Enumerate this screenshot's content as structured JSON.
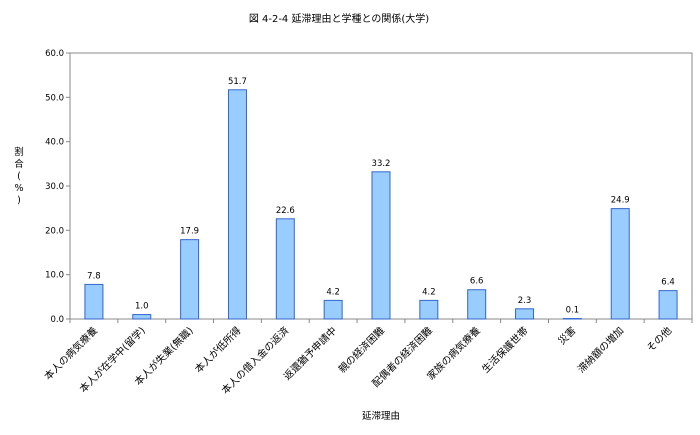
{
  "chart_data": {
    "type": "bar",
    "title": "図 4-2-4 延滞理由と学種との関係(大学)",
    "xlabel": "延滞理由",
    "ylabel": "割合(%)",
    "ylim": [
      0,
      60
    ],
    "yticks": [
      "0.0",
      "10.0",
      "20.0",
      "30.0",
      "40.0",
      "50.0",
      "60.0"
    ],
    "grid": false,
    "legend": "none",
    "bar_color": "#99ccff",
    "bar_edge_color": "#3366cc",
    "categories": [
      "本人の病気療養",
      "本人が在学中(留学)",
      "本人が失業(無職)",
      "本人が低所得",
      "本人の借入金の返済",
      "返還猶予申請中",
      "親の経済困難",
      "配偶者の経済困難",
      "家族の病気療養",
      "生活保護世帯",
      "災害",
      "滞納額の増加",
      "その他"
    ],
    "values": [
      7.8,
      1.0,
      17.9,
      51.7,
      22.6,
      4.2,
      33.2,
      4.2,
      6.6,
      2.3,
      0.1,
      24.9,
      6.4
    ],
    "data_labels": [
      "7.8",
      "1.0",
      "17.9",
      "51.7",
      "22.6",
      "4.2",
      "33.2",
      "4.2",
      "6.6",
      "2.3",
      "0.1",
      "24.9",
      "6.4"
    ]
  }
}
